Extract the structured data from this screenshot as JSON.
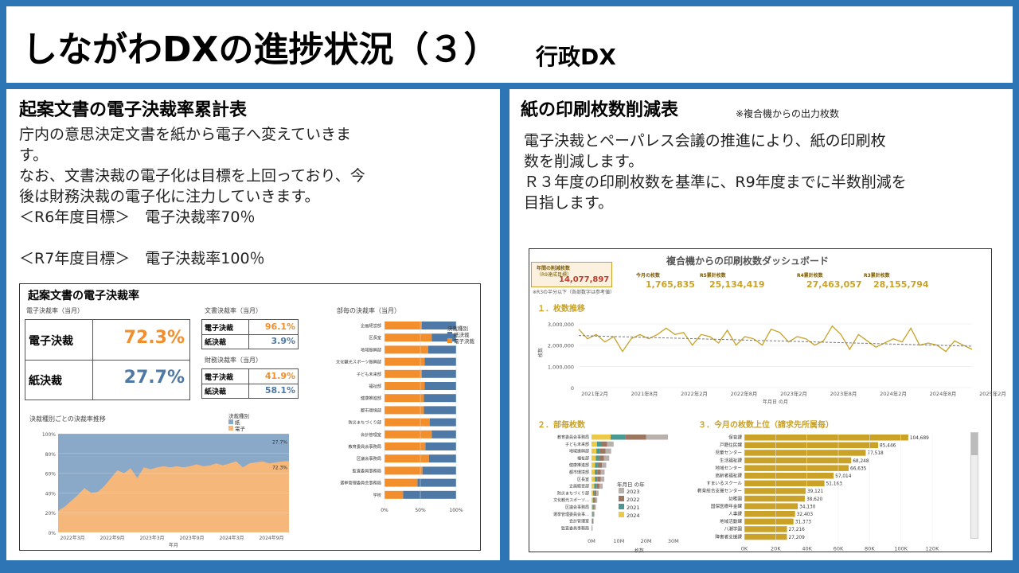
{
  "header": {
    "title": "しながわDXの進捗状況（３）",
    "subtitle": "行政DX"
  },
  "left": {
    "title": "起案文書の電子決裁率累計表",
    "text_lines": [
      "庁内の意思決定文書を紙から電子へ変えていきま",
      "す。",
      "なお、文書決裁の電子化は目標を上回っており、今",
      "後は財務決裁の電子化に注力していきます。",
      "＜R6年度目標＞　電子決裁率70％",
      "＜R7年度目標＞　電子決裁率100％"
    ],
    "dashboard": {
      "title": "起案文書の電子決裁率",
      "rate_label": "電子決裁率（当月）",
      "big_rows": [
        {
          "label": "電子決裁",
          "value": "72.3%"
        },
        {
          "label": "紙決裁",
          "value": "27.7%"
        }
      ],
      "doc_label": "文書決裁率（当月）",
      "doc_rows": [
        {
          "label": "電子決裁",
          "value": "96.1%"
        },
        {
          "label": "紙決裁",
          "value": "3.9%"
        }
      ],
      "fin_label": "財務決裁率（当月）",
      "fin_rows": [
        {
          "label": "電子決裁",
          "value": "41.9%"
        },
        {
          "label": "紙決裁",
          "value": "58.1%"
        }
      ],
      "dept_chart": {
        "title": "部毎の決裁率（当月）",
        "legend_title": "決裁種別",
        "legend": [
          "紙決裁",
          "電子決裁"
        ],
        "x_ticks": [
          "0%",
          "50%",
          "100%"
        ]
      },
      "trend_chart": {
        "title": "決裁種別ごとの決裁率推移",
        "legend_title": "決裁種別",
        "legend": [
          "紙",
          "電子"
        ],
        "y_ticks": [
          "100%",
          "80%",
          "60%",
          "40%",
          "20%",
          "0%"
        ],
        "x_ticks": [
          "2022年3月",
          "2022年9月",
          "2023年3月",
          "2023年9月",
          "2024年3月",
          "2024年9月"
        ],
        "xlabel": "年月",
        "end_labels": [
          "27.7%",
          "72.3%"
        ]
      }
    }
  },
  "right": {
    "title": "紙の印刷枚数削減表",
    "note": "※複合機からの出力枚数",
    "text_lines": [
      "電子決裁とペーパレス会議の推進により、紙の印刷枚",
      "数を削減します。",
      "Ｒ３年度の印刷枚数を基準に、R9年度までに半数削減を",
      "目指します。"
    ],
    "dashboard": {
      "title": "複合機からの印刷枚数ダッシュボード",
      "target_label": "年間の削減枚数",
      "target_sub": "（R9達成目標）",
      "target_value": "14,077,897",
      "target_note": "※R3の半分以下（各部数字は参考値）",
      "kpis": [
        {
          "label": "今月の枚数",
          "value": "1,765,835"
        },
        {
          "label": "R5累計枚数",
          "value": "25,134,419"
        },
        {
          "label": "R4累計枚数",
          "value": "27,463,057"
        },
        {
          "label": "R3累計枚数",
          "value": "28,155,794"
        }
      ],
      "section1": "１．枚数推移",
      "section2": "２．部毎枚数",
      "section3": "３．今月の枚数上位（請求先所属毎）",
      "trend_y_ticks": [
        "3,000,000",
        "2,000,000",
        "1,000,000",
        "0"
      ],
      "trend_ylabel": "枚数",
      "trend_x_ticks": [
        "2021年2月",
        "2021年8月",
        "2022年2月",
        "2022年8月",
        "2023年2月",
        "2023年8月",
        "2024年2月",
        "2024年8月",
        "2025年2月"
      ],
      "trend_xlabel": "年月日 の月",
      "dept_legend_title": "年月日 の年",
      "dept_legend": [
        "2023",
        "2022",
        "2021",
        "2024"
      ],
      "dept_x_ticks": [
        "0M",
        "10M",
        "20M",
        "30M"
      ],
      "dept_xlabel": "枚数",
      "top_x_ticks": [
        "0K",
        "20K",
        "40K",
        "60K",
        "80K",
        "100K",
        "120K"
      ]
    }
  },
  "chart_data": [
    {
      "type": "bar",
      "title": "部毎の決裁率（当月）",
      "categories": [
        "企画経営部",
        "区長室",
        "地域振興部",
        "文化観光スポーツ振興部",
        "子ども未来部",
        "福祉部",
        "健康推進部",
        "都市環境部",
        "防災まちづくり部",
        "会計管理室",
        "教育委員会事務局",
        "区議会事務局",
        "監査委員事務局",
        "選挙管理委員会事務局",
        "学校"
      ],
      "series": [
        {
          "name": "電子決裁",
          "values": [
            0.52,
            0.66,
            0.61,
            0.56,
            0.52,
            0.56,
            0.55,
            0.55,
            0.63,
            0.66,
            0.57,
            0.62,
            0.53,
            0.46,
            0.26
          ]
        },
        {
          "name": "紙決裁",
          "values": [
            0.48,
            0.34,
            0.39,
            0.44,
            0.48,
            0.44,
            0.45,
            0.45,
            0.37,
            0.34,
            0.43,
            0.38,
            0.47,
            0.54,
            0.74
          ]
        }
      ],
      "colors": {
        "紙決裁": "#4e79a7",
        "電子決裁": "#f28e2b"
      },
      "xlim": [
        0,
        1
      ]
    },
    {
      "type": "area",
      "title": "決裁種別ごとの決裁率推移",
      "xlabel": "年月",
      "series": [
        {
          "name": "電子",
          "values": [
            0.22,
            0.26,
            0.32,
            0.38,
            0.45,
            0.4,
            0.41,
            0.47,
            0.55,
            0.63,
            0.6,
            0.65,
            0.55,
            0.66,
            0.64,
            0.66,
            0.67,
            0.66,
            0.67,
            0.66,
            0.67,
            0.69,
            0.67,
            0.68,
            0.7,
            0.68,
            0.7,
            0.72,
            0.66,
            0.7,
            0.71,
            0.72,
            0.7,
            0.71,
            0.72,
            0.723
          ]
        },
        {
          "name": "紙",
          "values": [
            0.78,
            0.74,
            0.68,
            0.62,
            0.55,
            0.6,
            0.59,
            0.53,
            0.45,
            0.37,
            0.4,
            0.35,
            0.45,
            0.34,
            0.36,
            0.34,
            0.33,
            0.34,
            0.33,
            0.34,
            0.33,
            0.31,
            0.33,
            0.32,
            0.3,
            0.32,
            0.3,
            0.28,
            0.34,
            0.3,
            0.29,
            0.28,
            0.3,
            0.29,
            0.28,
            0.277
          ]
        }
      ],
      "colors": {
        "紙": "#8aa9c9",
        "電子": "#f5b77a"
      },
      "ylim": [
        0,
        1
      ]
    },
    {
      "type": "line",
      "title": "１．枚数推移",
      "ylabel": "枚数",
      "xlabel": "年月日 の月",
      "values": [
        2750000,
        2300000,
        2500000,
        2150000,
        2400000,
        1700000,
        2300000,
        2500000,
        2300000,
        2500000,
        2800000,
        2500000,
        2600000,
        2000000,
        2500000,
        2400000,
        2100000,
        2700000,
        2000000,
        2400000,
        2300000,
        2000000,
        2750000,
        2600000,
        2150000,
        2400000,
        2300000,
        2000000,
        2200000,
        2900000,
        2500000,
        1800000,
        2500000,
        2200000,
        1900000,
        2100000,
        2300000,
        2150000,
        2800000,
        2000000,
        2100000,
        2000000,
        1700000,
        2200000,
        2000000,
        1800000
      ],
      "trend": [
        2450000,
        1950000
      ],
      "ylim": [
        0,
        3300000
      ]
    },
    {
      "type": "bar",
      "title": "２．部毎枚数",
      "categories": [
        "教育委員会事務局",
        "子ども未来部",
        "地域振興部",
        "福祉部",
        "健康推進部",
        "都市環境部",
        "区長室",
        "企画経営部",
        "防災まちづくり部",
        "文化観光スポーツ…",
        "区議会事務局",
        "選挙管理委員会事…",
        "会計管理室",
        "監査委員事務局"
      ],
      "series": [
        {
          "name": "2024",
          "values": [
            7.0,
            2.0,
            1.8,
            1.6,
            1.3,
            1.2,
            1.2,
            1.0,
            0.6,
            0.5,
            0.4,
            0.3,
            0.2,
            0.1
          ]
        },
        {
          "name": "2021",
          "values": [
            5.5,
            1.5,
            1.3,
            1.2,
            1.0,
            0.9,
            0.9,
            0.8,
            0.5,
            0.4,
            0.3,
            0.2,
            0.2,
            0.1
          ]
        },
        {
          "name": "2022",
          "values": [
            7.5,
            2.2,
            2.0,
            1.8,
            1.5,
            1.3,
            1.3,
            1.1,
            0.7,
            0.6,
            0.4,
            0.3,
            0.2,
            0.1
          ]
        },
        {
          "name": "2023",
          "values": [
            8.0,
            2.4,
            2.1,
            1.9,
            1.6,
            1.4,
            1.3,
            1.2,
            0.8,
            0.6,
            0.5,
            0.3,
            0.2,
            0.1
          ]
        }
      ],
      "colors": {
        "2023": "#b8b0ac",
        "2022": "#9d7660",
        "2021": "#499894",
        "2024": "#edc948"
      },
      "xlim": [
        0,
        35
      ]
    },
    {
      "type": "bar",
      "title": "３．今月の枚数上位（請求先所属毎）",
      "categories": [
        "保育課",
        "戸籍住民課",
        "児童センター",
        "生活福祉課",
        "地域センター",
        "高齢者福祉課",
        "すまいるスクール",
        "教育総合支援センター",
        "幼稚園",
        "国保医療年金課",
        "人事課",
        "地域活動課",
        "八潮学園",
        "障害者支援課"
      ],
      "values": [
        104689,
        85446,
        77518,
        68248,
        66635,
        57014,
        51163,
        39121,
        38620,
        34130,
        32403,
        31373,
        27216,
        27209
      ],
      "xlim": [
        0,
        120000
      ],
      "color": "#c9a227"
    }
  ]
}
